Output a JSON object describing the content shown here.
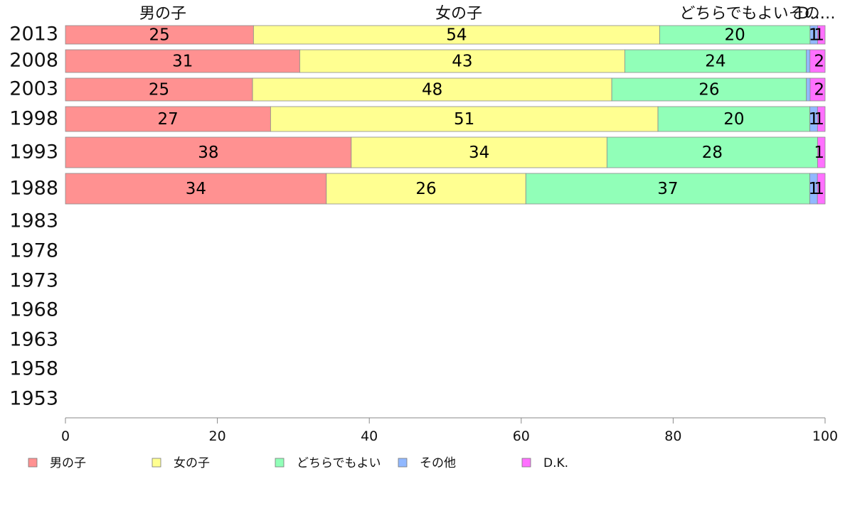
{
  "chart_data": {
    "type": "bar",
    "orientation": "horizontal",
    "stacked": true,
    "categories": [
      "2013",
      "2008",
      "2003",
      "1998",
      "1993",
      "1988",
      "1983",
      "1978",
      "1973",
      "1968",
      "1963",
      "1958",
      "1953"
    ],
    "series": [
      {
        "name": "男の子",
        "color": "#ff9191",
        "values": [
          25,
          31,
          25,
          27,
          38,
          34,
          null,
          null,
          null,
          null,
          null,
          null,
          null
        ]
      },
      {
        "name": "女の子",
        "color": "#ffff91",
        "values": [
          54,
          43,
          48,
          51,
          34,
          26,
          null,
          null,
          null,
          null,
          null,
          null,
          null
        ]
      },
      {
        "name": "どちらでもよい",
        "color": "#91ffb8",
        "values": [
          20,
          24,
          26,
          20,
          28,
          37,
          null,
          null,
          null,
          null,
          null,
          null,
          null
        ]
      },
      {
        "name": "その他",
        "color": "#91b8ff",
        "values": [
          1,
          0.5,
          0.5,
          1,
          0,
          1,
          null,
          null,
          null,
          null,
          null,
          null,
          null
        ]
      },
      {
        "name": "D.K.",
        "color": "#ff70ff",
        "values": [
          1,
          2,
          2,
          1,
          1,
          1,
          null,
          null,
          null,
          null,
          null,
          null,
          null
        ]
      }
    ],
    "data_labels": [
      [
        "25",
        "54",
        "20",
        "1",
        "1"
      ],
      [
        "31",
        "43",
        "24",
        "",
        "2"
      ],
      [
        "25",
        "48",
        "26",
        "",
        "2"
      ],
      [
        "27",
        "51",
        "20",
        "1",
        "1"
      ],
      [
        "38",
        "34",
        "28",
        "",
        "1"
      ],
      [
        "34",
        "26",
        "37",
        "1",
        "1"
      ]
    ],
    "column_headers": [
      "男の子",
      "女の子",
      "どちらでもよい",
      "その他",
      "D.K."
    ],
    "column_headers_shown": [
      "男の子",
      "女の子",
      "どちらでもよいその…",
      "D…"
    ],
    "x_ticks": [
      "0",
      "20",
      "40",
      "60",
      "80",
      "100"
    ],
    "xlim": [
      0,
      100
    ],
    "grid": false,
    "legend_position": "bottom",
    "xlabel": "",
    "ylabel": "",
    "title": ""
  }
}
